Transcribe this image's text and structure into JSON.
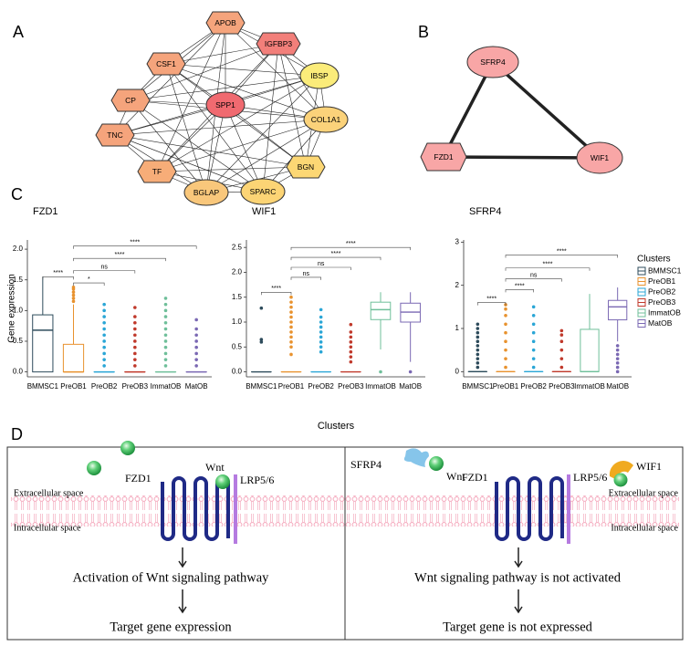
{
  "panel_labels": [
    "A",
    "B",
    "C",
    "D"
  ],
  "network": {
    "nodes": [
      {
        "label": "CSF1",
        "shape": "hexagon",
        "color": "#f5a47c"
      },
      {
        "label": "APOB",
        "shape": "hexagon",
        "color": "#f5a47c"
      },
      {
        "label": "IGFBP3",
        "shape": "hexagon",
        "color": "#f27f7a"
      },
      {
        "label": "CP",
        "shape": "hexagon",
        "color": "#f5a47c"
      },
      {
        "label": "IBSP",
        "shape": "ellipse",
        "color": "#fbec7a"
      },
      {
        "label": "SPP1",
        "shape": "ellipse",
        "color": "#f06a70"
      },
      {
        "label": "COL1A1",
        "shape": "ellipse",
        "color": "#fbd27a"
      },
      {
        "label": "TNC",
        "shape": "hexagon",
        "color": "#f5a47c"
      },
      {
        "label": "BGN",
        "shape": "hexagon",
        "color": "#fcd774"
      },
      {
        "label": "TF",
        "shape": "hexagon",
        "color": "#f7ad78"
      },
      {
        "label": "BGLAP",
        "shape": "ellipse",
        "color": "#f9c77b"
      },
      {
        "label": "SPARC",
        "shape": "ellipse",
        "color": "#fcd475"
      }
    ],
    "edges": [
      [
        5,
        0
      ],
      [
        5,
        1
      ],
      [
        5,
        2
      ],
      [
        5,
        3
      ],
      [
        5,
        4
      ],
      [
        5,
        6
      ],
      [
        5,
        7
      ],
      [
        5,
        8
      ],
      [
        5,
        9
      ],
      [
        5,
        10
      ],
      [
        5,
        11
      ],
      [
        0,
        1
      ],
      [
        0,
        2
      ],
      [
        0,
        3
      ],
      [
        0,
        4
      ],
      [
        0,
        6
      ],
      [
        0,
        8
      ],
      [
        0,
        10
      ],
      [
        0,
        11
      ],
      [
        1,
        2
      ],
      [
        1,
        3
      ],
      [
        1,
        4
      ],
      [
        1,
        6
      ],
      [
        1,
        7
      ],
      [
        1,
        9
      ],
      [
        1,
        10
      ],
      [
        2,
        3
      ],
      [
        2,
        4
      ],
      [
        2,
        6
      ],
      [
        2,
        8
      ],
      [
        2,
        9
      ],
      [
        2,
        11
      ],
      [
        3,
        7
      ],
      [
        3,
        4
      ],
      [
        3,
        6
      ],
      [
        3,
        10
      ],
      [
        3,
        11
      ],
      [
        4,
        6
      ],
      [
        4,
        7
      ],
      [
        4,
        9
      ],
      [
        4,
        10
      ],
      [
        4,
        8
      ],
      [
        6,
        7
      ],
      [
        6,
        8
      ],
      [
        6,
        9
      ],
      [
        6,
        10
      ],
      [
        6,
        11
      ],
      [
        7,
        9
      ],
      [
        7,
        8
      ],
      [
        7,
        10
      ],
      [
        7,
        11
      ],
      [
        8,
        9
      ],
      [
        8,
        10
      ],
      [
        8,
        11
      ],
      [
        9,
        10
      ],
      [
        9,
        11
      ],
      [
        10,
        11
      ]
    ]
  },
  "triangle": {
    "nodes": [
      {
        "label": "SFRP4",
        "shape": "ellipse",
        "color": "#f8a6a6"
      },
      {
        "label": "FZD1",
        "shape": "hexagon",
        "color": "#f8a6a6"
      },
      {
        "label": "WIF1",
        "shape": "ellipse",
        "color": "#f8a6a6"
      }
    ],
    "edges": [
      [
        0,
        1
      ],
      [
        0,
        2
      ],
      [
        1,
        2
      ]
    ]
  },
  "chart_data": [
    {
      "type": "box",
      "title": "FZD1",
      "ylabel": "Gene expression",
      "categories": [
        "BMMSC1",
        "PreOB1",
        "PreOB2",
        "PreOB3",
        "ImmatOB",
        "MatOB"
      ],
      "colors": [
        "#2d4b5b",
        "#e8922e",
        "#2aa6d6",
        "#c0392b",
        "#6fbf9a",
        "#7a68b3"
      ],
      "ylim": [
        -0.08,
        2.15
      ],
      "yticks": [
        {
          "value": 0,
          "label": "0.0"
        },
        0.5,
        {
          "value": 1,
          "label": "1.0"
        },
        1.5,
        {
          "value": 2,
          "label": "2.0"
        }
      ],
      "boxes": [
        {
          "low": 0,
          "q1": 0,
          "median": 0.68,
          "q3": 0.93,
          "high": 1.55,
          "outliers": []
        },
        {
          "low": 0,
          "q1": 0,
          "median": 0,
          "q3": 0.45,
          "high": 1.1,
          "outliers": [
            1.15,
            1.2,
            1.25,
            1.3,
            1.35,
            1.38
          ]
        },
        {
          "low": 0,
          "q1": 0,
          "median": 0,
          "q3": 0,
          "high": 0,
          "outliers": [
            0.1,
            0.2,
            0.3,
            0.4,
            0.5,
            0.6,
            0.7,
            0.8,
            0.9,
            1.0,
            1.1
          ]
        },
        {
          "low": 0,
          "q1": 0,
          "median": 0,
          "q3": 0,
          "high": 0,
          "outliers": [
            0.1,
            0.2,
            0.3,
            0.4,
            0.5,
            0.6,
            0.7,
            0.8,
            0.9,
            1.05
          ]
        },
        {
          "low": 0,
          "q1": 0,
          "median": 0,
          "q3": 0,
          "high": 0,
          "outliers": [
            0.1,
            0.2,
            0.3,
            0.4,
            0.5,
            0.6,
            0.7,
            0.8,
            0.9,
            1.0,
            1.1,
            1.2
          ]
        },
        {
          "low": 0,
          "q1": 0,
          "median": 0,
          "q3": 0,
          "high": 0,
          "outliers": [
            0.1,
            0.2,
            0.3,
            0.4,
            0.5,
            0.6,
            0.7,
            0.85
          ]
        }
      ],
      "brackets": [
        {
          "label": "****",
          "from": 0,
          "to": 1,
          "at": 1.55
        },
        {
          "label": "*",
          "from": 1,
          "to": 2,
          "at": 1.45
        },
        {
          "label": "ns",
          "from": 1,
          "to": 3,
          "at": 1.65
        },
        {
          "label": "****",
          "from": 1,
          "to": 4,
          "at": 1.85
        },
        {
          "label": "****",
          "from": 1,
          "to": 5,
          "at": 2.05
        }
      ]
    },
    {
      "type": "box",
      "title": "WIF1",
      "xlabel": "Clusters",
      "categories": [
        "BMMSC1",
        "PreOB1",
        "PreOB2",
        "PreOB3",
        "ImmatOB",
        "MatOB"
      ],
      "colors": [
        "#2d4b5b",
        "#e8922e",
        "#2aa6d6",
        "#c0392b",
        "#6fbf9a",
        "#7a68b3"
      ],
      "ylim": [
        -0.1,
        2.65
      ],
      "yticks": [
        {
          "value": 0,
          "label": "0.0"
        },
        0.5,
        {
          "value": 1,
          "label": "1.0"
        },
        1.5,
        {
          "value": 2,
          "label": "2.0"
        },
        2.5
      ],
      "boxes": [
        {
          "low": 0,
          "q1": 0,
          "median": 0,
          "q3": 0,
          "high": 0,
          "outliers": [
            0.6,
            0.65,
            1.28
          ]
        },
        {
          "low": 0,
          "q1": 0,
          "median": 0,
          "q3": 0,
          "high": 0,
          "outliers": [
            0.35,
            0.5,
            0.6,
            0.7,
            0.8,
            0.9,
            1.0,
            1.1,
            1.2,
            1.3,
            1.4,
            1.5
          ]
        },
        {
          "low": 0,
          "q1": 0,
          "median": 0,
          "q3": 0,
          "high": 0,
          "outliers": [
            0.4,
            0.5,
            0.6,
            0.7,
            0.8,
            0.9,
            1.0,
            1.1,
            1.25
          ]
        },
        {
          "low": 0,
          "q1": 0,
          "median": 0,
          "q3": 0,
          "high": 0,
          "outliers": [
            0.2,
            0.3,
            0.4,
            0.5,
            0.6,
            0.7,
            0.8,
            0.95
          ]
        },
        {
          "low": 0.45,
          "q1": 1.05,
          "median": 1.25,
          "q3": 1.4,
          "high": 1.6,
          "outliers": [
            0
          ]
        },
        {
          "low": 0.2,
          "q1": 1.0,
          "median": 1.2,
          "q3": 1.38,
          "high": 1.6,
          "outliers": [
            0
          ]
        }
      ],
      "brackets": [
        {
          "label": "****",
          "from": 0,
          "to": 1,
          "at": 1.6
        },
        {
          "label": "ns",
          "from": 1,
          "to": 2,
          "at": 1.9
        },
        {
          "label": "ns",
          "from": 1,
          "to": 3,
          "at": 2.1
        },
        {
          "label": "****",
          "from": 1,
          "to": 4,
          "at": 2.3
        },
        {
          "label": "****",
          "from": 1,
          "to": 5,
          "at": 2.5
        }
      ]
    },
    {
      "type": "box",
      "title": "SFRP4",
      "legend_title": "Clusters",
      "categories": [
        "BMMSC1",
        "PreOB1",
        "PreOB2",
        "PreOB3",
        "ImmatOB",
        "MatOB"
      ],
      "colors": [
        "#2d4b5b",
        "#e8922e",
        "#2aa6d6",
        "#c0392b",
        "#6fbf9a",
        "#7a68b3"
      ],
      "ylim": [
        -0.12,
        3.05
      ],
      "yticks": [
        0,
        1,
        2,
        3
      ],
      "boxes": [
        {
          "low": 0,
          "q1": 0,
          "median": 0,
          "q3": 0,
          "high": 0,
          "outliers": [
            0.1,
            0.2,
            0.3,
            0.4,
            0.5,
            0.6,
            0.7,
            0.8,
            0.9,
            1.0,
            1.1
          ]
        },
        {
          "low": 0,
          "q1": 0,
          "median": 0,
          "q3": 0,
          "high": 0,
          "outliers": [
            0.1,
            0.3,
            0.5,
            0.7,
            0.9,
            1.1,
            1.3,
            1.45,
            1.55
          ]
        },
        {
          "low": 0,
          "q1": 0,
          "median": 0,
          "q3": 0,
          "high": 0,
          "outliers": [
            0.1,
            0.3,
            0.5,
            0.7,
            0.9,
            1.1,
            1.3,
            1.5
          ]
        },
        {
          "low": 0,
          "q1": 0,
          "median": 0,
          "q3": 0,
          "high": 0,
          "outliers": [
            0.1,
            0.3,
            0.5,
            0.7,
            0.85,
            0.95
          ]
        },
        {
          "low": 0,
          "q1": 0,
          "median": 0,
          "q3": 0.98,
          "high": 1.8,
          "outliers": []
        },
        {
          "low": 0.7,
          "q1": 1.2,
          "median": 1.5,
          "q3": 1.65,
          "high": 1.95,
          "outliers": [
            0,
            0.1,
            0.2,
            0.3,
            0.4,
            0.5,
            0.6
          ]
        }
      ],
      "brackets": [
        {
          "label": "****",
          "from": 0,
          "to": 1,
          "at": 1.6
        },
        {
          "label": "****",
          "from": 1,
          "to": 2,
          "at": 1.9
        },
        {
          "label": "ns",
          "from": 1,
          "to": 3,
          "at": 2.15
        },
        {
          "label": "****",
          "from": 1,
          "to": 4,
          "at": 2.4
        },
        {
          "label": "****",
          "from": 1,
          "to": 5,
          "at": 2.7
        }
      ]
    }
  ],
  "diagram": {
    "left": {
      "wnt": "Wnt",
      "receptor": "FZD1",
      "coreceptor": "LRP5/6",
      "extracellular": "Extracellular space",
      "intracellular": "Intracellular space",
      "step1": "Activation of Wnt signaling pathway",
      "step2": "Target gene expression"
    },
    "right": {
      "inhibitor1": "SFRP4",
      "wnt": "Wnt",
      "receptor": "FZD1",
      "inhibitor2": "WIF1",
      "coreceptor": "LRP5/6",
      "extracellular": "Extracellular space",
      "intracellular": "Intracellular space",
      "step1": "Wnt signaling pathway is not activated",
      "step2": "Target gene is not expressed"
    }
  }
}
